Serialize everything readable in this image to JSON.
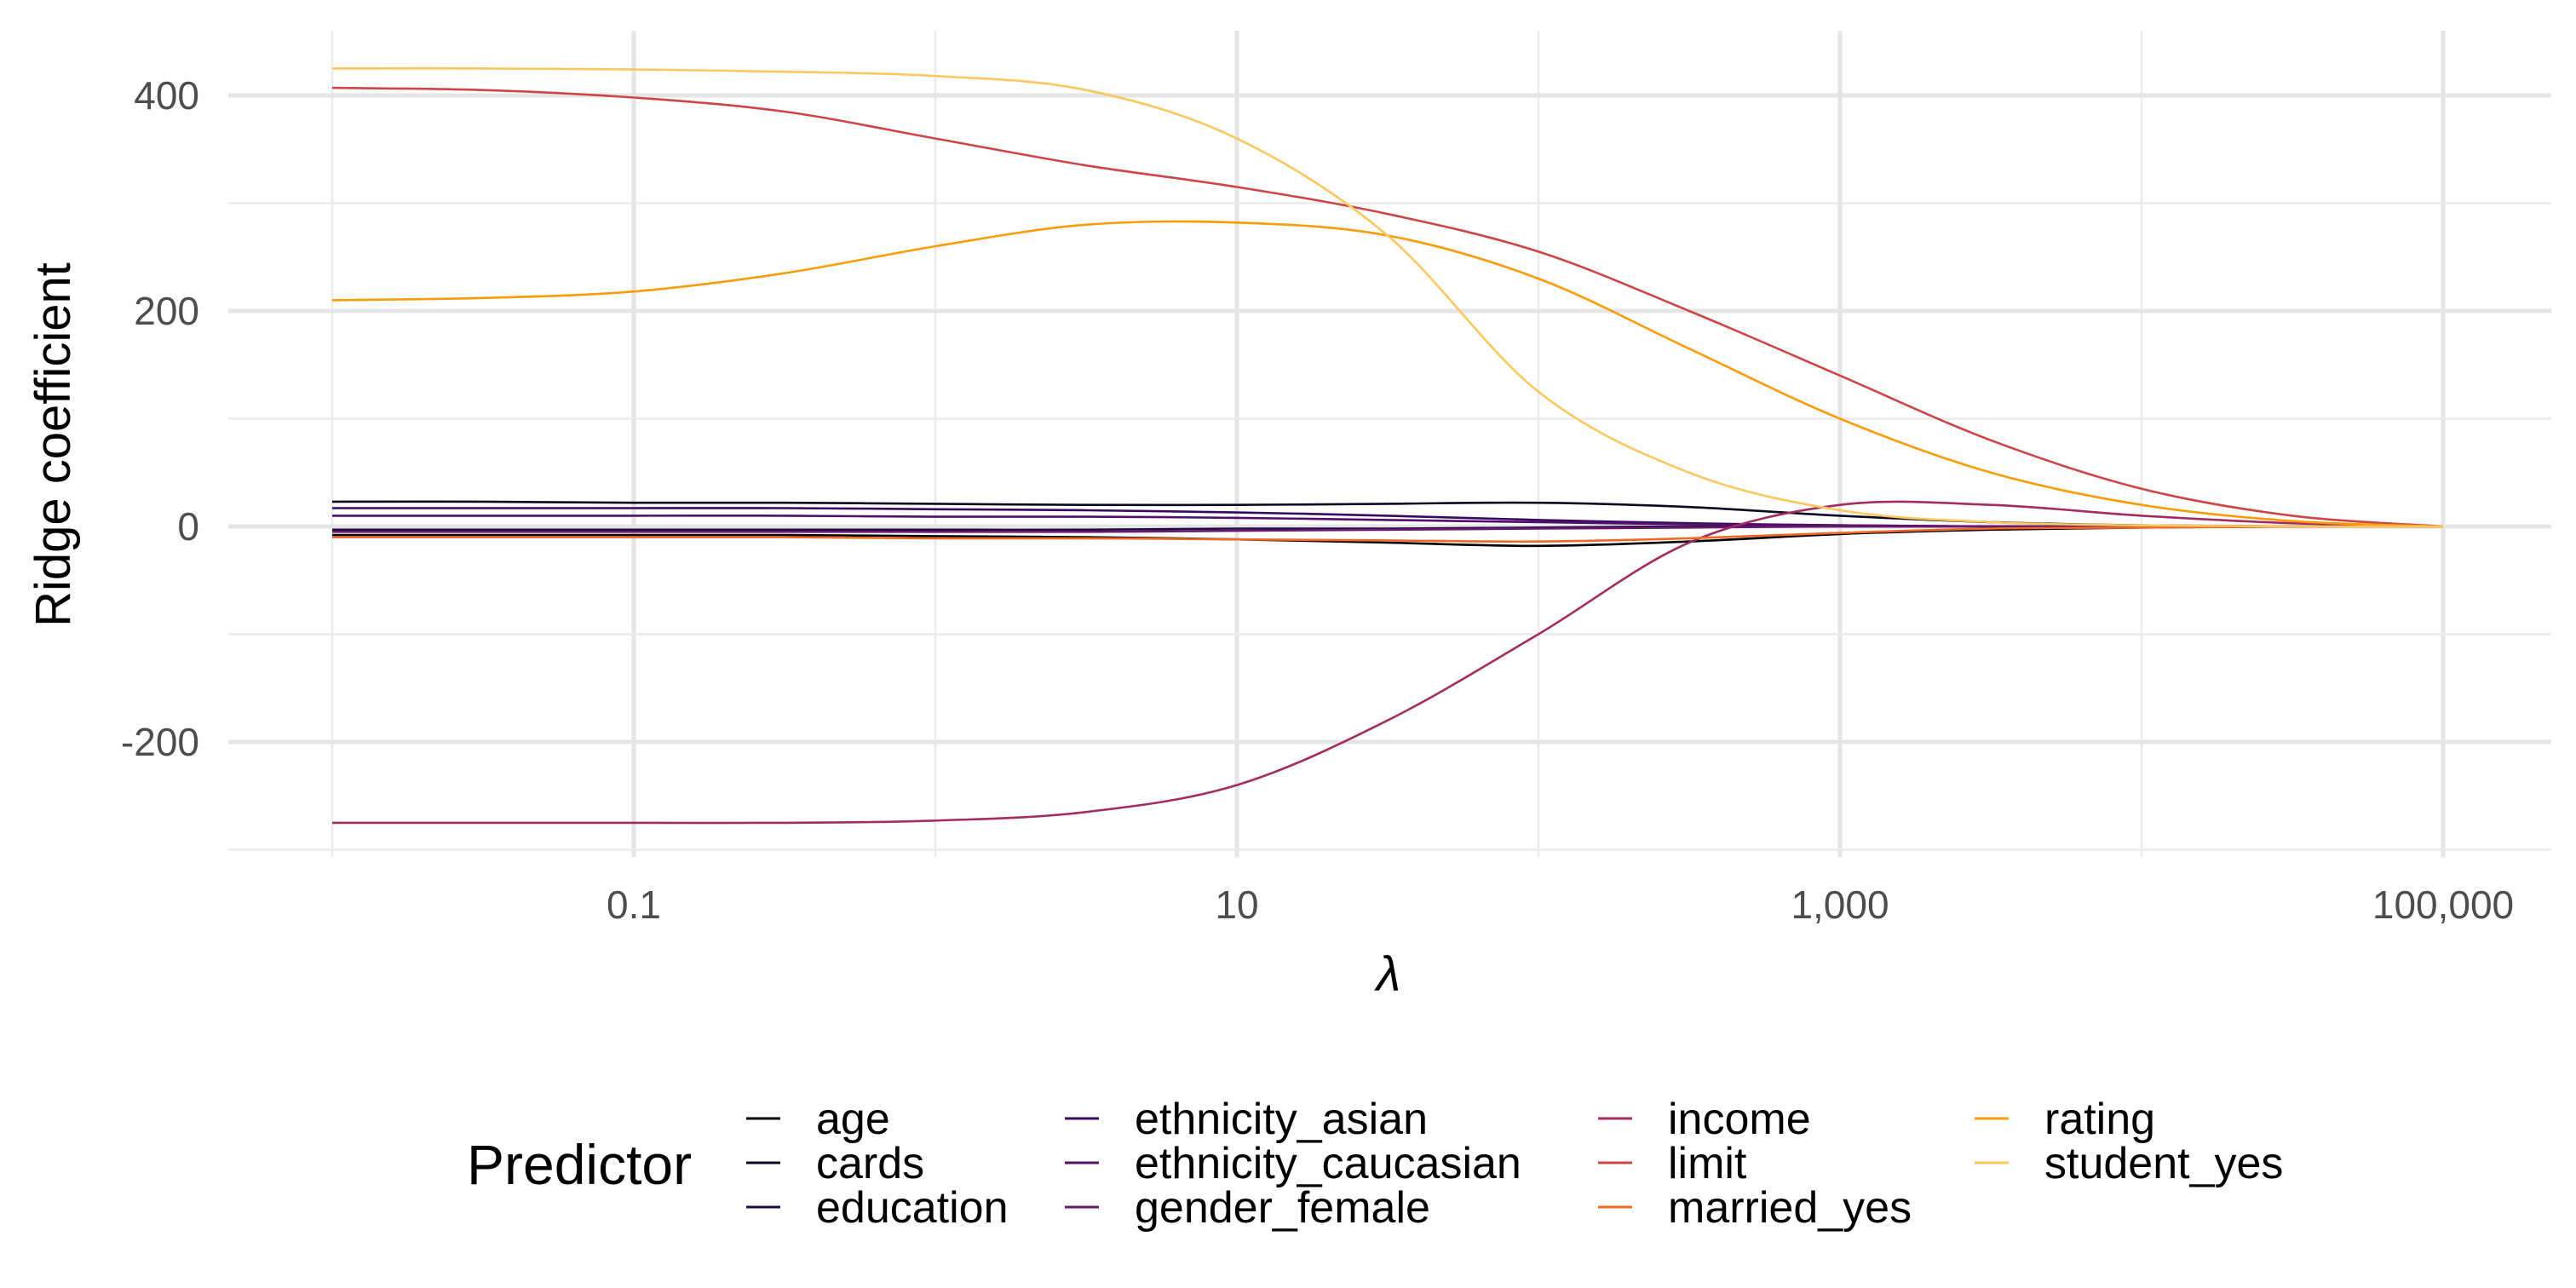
{
  "chart_data": {
    "type": "line",
    "xlabel": "λ",
    "ylabel": "Ridge coefficient",
    "x_scale": "log10",
    "xlim": [
      0.01,
      100000
    ],
    "ylim": [
      -300,
      430
    ],
    "x_ticks": [
      {
        "value": 0.1,
        "label": "0.1"
      },
      {
        "value": 10,
        "label": "10"
      },
      {
        "value": 1000,
        "label": "1,000"
      },
      {
        "value": 100000,
        "label": "100,000"
      }
    ],
    "y_ticks": [
      {
        "value": 400,
        "label": "400"
      },
      {
        "value": 200,
        "label": "200"
      },
      {
        "value": 0,
        "label": "0"
      },
      {
        "value": -200,
        "label": "-200"
      }
    ],
    "grid": true,
    "legend": {
      "title": "Predictor",
      "position": "bottom",
      "columns": 4
    },
    "x": [
      0.01,
      0.0316,
      0.1,
      0.316,
      1,
      3.16,
      10,
      31.6,
      100,
      316,
      1000,
      3162,
      10000,
      31623,
      100000
    ],
    "series": [
      {
        "name": "age",
        "color": "#000004",
        "values": [
          -8,
          -8,
          -8,
          -8,
          -9,
          -10,
          -12,
          -15,
          -18,
          -14,
          -7,
          -3,
          -1,
          0,
          0
        ]
      },
      {
        "name": "cards",
        "color": "#0a0822",
        "values": [
          23,
          23,
          22,
          22,
          21,
          20,
          20,
          21,
          22,
          18,
          10,
          4,
          1,
          0,
          0
        ]
      },
      {
        "name": "education",
        "color": "#1e0c45",
        "values": [
          -3,
          -3,
          -3,
          -3,
          -3,
          -3,
          -2,
          -2,
          -1,
          0,
          0,
          0,
          0,
          0,
          0
        ]
      },
      {
        "name": "ethnicity_asian",
        "color": "#380962",
        "values": [
          17,
          17,
          17,
          17,
          16,
          15,
          13,
          10,
          6,
          3,
          1,
          0,
          0,
          0,
          0
        ]
      },
      {
        "name": "ethnicity_caucasian",
        "color": "#510e6c",
        "values": [
          10,
          10,
          10,
          10,
          9,
          9,
          8,
          6,
          4,
          2,
          1,
          0,
          0,
          0,
          0
        ]
      },
      {
        "name": "gender_female",
        "color": "#6a176e",
        "values": [
          -5,
          -5,
          -5,
          -5,
          -5,
          -5,
          -4,
          -3,
          -2,
          -1,
          0,
          0,
          0,
          0,
          0
        ]
      },
      {
        "name": "income",
        "color": "#a52c60",
        "values": [
          -275,
          -275,
          -275,
          -275,
          -273,
          -265,
          -240,
          -180,
          -100,
          -15,
          20,
          20,
          10,
          3,
          0
        ]
      },
      {
        "name": "limit",
        "color": "#cf4446",
        "values": [
          407,
          405,
          398,
          385,
          360,
          335,
          315,
          290,
          255,
          200,
          140,
          80,
          35,
          10,
          0
        ]
      },
      {
        "name": "married_yes",
        "color": "#ed6925",
        "values": [
          -10,
          -10,
          -10,
          -10,
          -11,
          -11,
          -12,
          -13,
          -14,
          -11,
          -6,
          -2,
          -1,
          0,
          0
        ]
      },
      {
        "name": "rating",
        "color": "#fb9b06",
        "values": [
          210,
          212,
          218,
          235,
          260,
          280,
          282,
          270,
          230,
          165,
          100,
          50,
          20,
          5,
          0
        ]
      },
      {
        "name": "student_yes",
        "color": "#fcc75e",
        "values": [
          425,
          425,
          424,
          422,
          418,
          405,
          360,
          270,
          125,
          50,
          15,
          4,
          1,
          0,
          0
        ]
      }
    ]
  }
}
